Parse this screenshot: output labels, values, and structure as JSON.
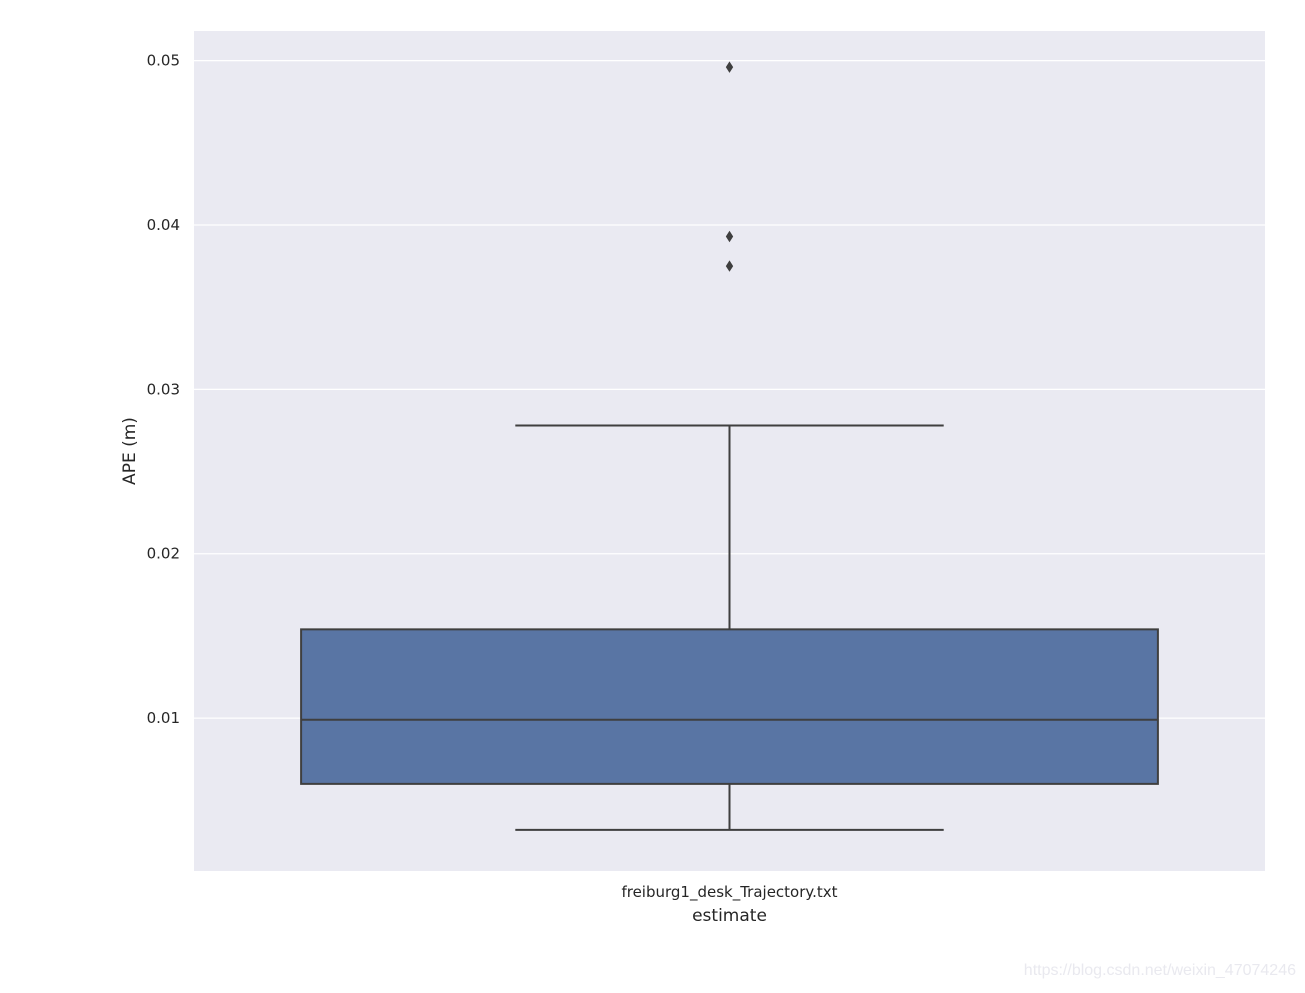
{
  "chart_data": {
    "type": "box",
    "title": "",
    "xlabel": "estimate",
    "ylabel": "APE (m)",
    "categories": [
      "freiburg1_desk_Trajectory.txt"
    ],
    "ylim": [
      0.0007,
      0.0518
    ],
    "yticks": [
      0.01,
      0.02,
      0.03,
      0.04,
      0.05
    ],
    "ytick_labels": [
      "0.01",
      "0.02",
      "0.03",
      "0.04",
      "0.05"
    ],
    "grid": true,
    "boxes": [
      {
        "category": "freiburg1_desk_Trajectory.txt",
        "whisker_low": 0.0032,
        "q1": 0.006,
        "median": 0.0099,
        "q3": 0.0154,
        "whisker_high": 0.0278,
        "outliers": [
          0.0375,
          0.0393,
          0.0496
        ]
      }
    ]
  },
  "colors": {
    "plot_background": "#eaeaf2",
    "grid": "#ffffff",
    "box_fill": "#5975a4",
    "box_edge": "#3f3f3f",
    "text": "#262626"
  },
  "watermark": "https://blog.csdn.net/weixin_47074246"
}
